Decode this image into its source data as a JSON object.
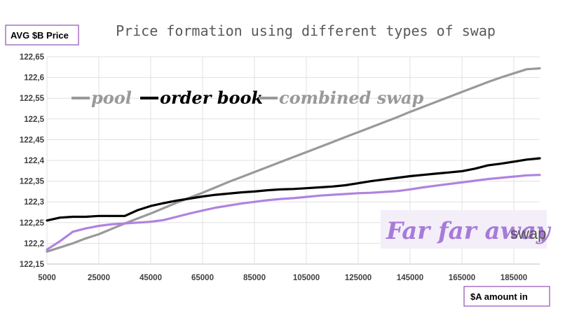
{
  "chart_data": {
    "type": "line",
    "title": "Price formation using different types of swap",
    "ylabel": "AVG $B Price",
    "xlabel": "$A amount in",
    "xlim": [
      5000,
      195000
    ],
    "ylim": [
      122.15,
      122.65
    ],
    "x_ticks": [
      "5000",
      "25000",
      "45000",
      "65000",
      "85000",
      "105000",
      "125000",
      "145000",
      "165000",
      "185000"
    ],
    "y_ticks": [
      "122,15",
      "122,2",
      "122,25",
      "122,3",
      "122,35",
      "122,4",
      "122,45",
      "122,5",
      "122,55",
      "122,6",
      "122,65"
    ],
    "grid": true,
    "legend_position": "top-left",
    "x": [
      5000,
      10000,
      15000,
      20000,
      25000,
      30000,
      35000,
      40000,
      45000,
      50000,
      55000,
      60000,
      65000,
      70000,
      75000,
      80000,
      85000,
      90000,
      95000,
      100000,
      105000,
      110000,
      115000,
      120000,
      125000,
      130000,
      135000,
      140000,
      145000,
      150000,
      155000,
      160000,
      165000,
      170000,
      175000,
      180000,
      185000,
      190000,
      195000
    ],
    "series": [
      {
        "name": "pool",
        "color": "#999999",
        "values": [
          122.18,
          122.19,
          122.2,
          122.212,
          122.222,
          122.235,
          122.248,
          122.26,
          122.272,
          122.285,
          122.298,
          122.31,
          122.322,
          122.335,
          122.348,
          122.36,
          122.372,
          122.384,
          122.396,
          122.408,
          122.42,
          122.432,
          122.444,
          122.456,
          122.468,
          122.48,
          122.492,
          122.504,
          122.517,
          122.529,
          122.541,
          122.553,
          122.565,
          122.577,
          122.589,
          122.6,
          122.61,
          122.62,
          122.622
        ]
      },
      {
        "name": "order book",
        "color": "#000000",
        "values": [
          122.255,
          122.262,
          122.264,
          122.264,
          122.266,
          122.266,
          122.266,
          122.28,
          122.29,
          122.297,
          122.303,
          122.308,
          122.313,
          122.317,
          122.32,
          122.323,
          122.325,
          122.328,
          122.33,
          122.331,
          122.333,
          122.335,
          122.337,
          122.34,
          122.345,
          122.35,
          122.354,
          122.358,
          122.362,
          122.365,
          122.368,
          122.371,
          122.374,
          122.38,
          122.388,
          122.392,
          122.397,
          122.402,
          122.405
        ]
      },
      {
        "name": "combined swap",
        "color": "#b083e0",
        "values": [
          122.185,
          122.205,
          122.228,
          122.236,
          122.242,
          122.246,
          122.248,
          122.25,
          122.252,
          122.256,
          122.264,
          122.272,
          122.279,
          122.286,
          122.291,
          122.296,
          122.3,
          122.304,
          122.307,
          122.309,
          122.312,
          122.315,
          122.317,
          122.319,
          122.321,
          122.322,
          122.324,
          122.326,
          122.33,
          122.335,
          122.339,
          122.343,
          122.347,
          122.351,
          122.355,
          122.358,
          122.361,
          122.364,
          122.365
        ]
      }
    ]
  },
  "brand": {
    "main": "Far far away",
    "sub": "swap"
  }
}
